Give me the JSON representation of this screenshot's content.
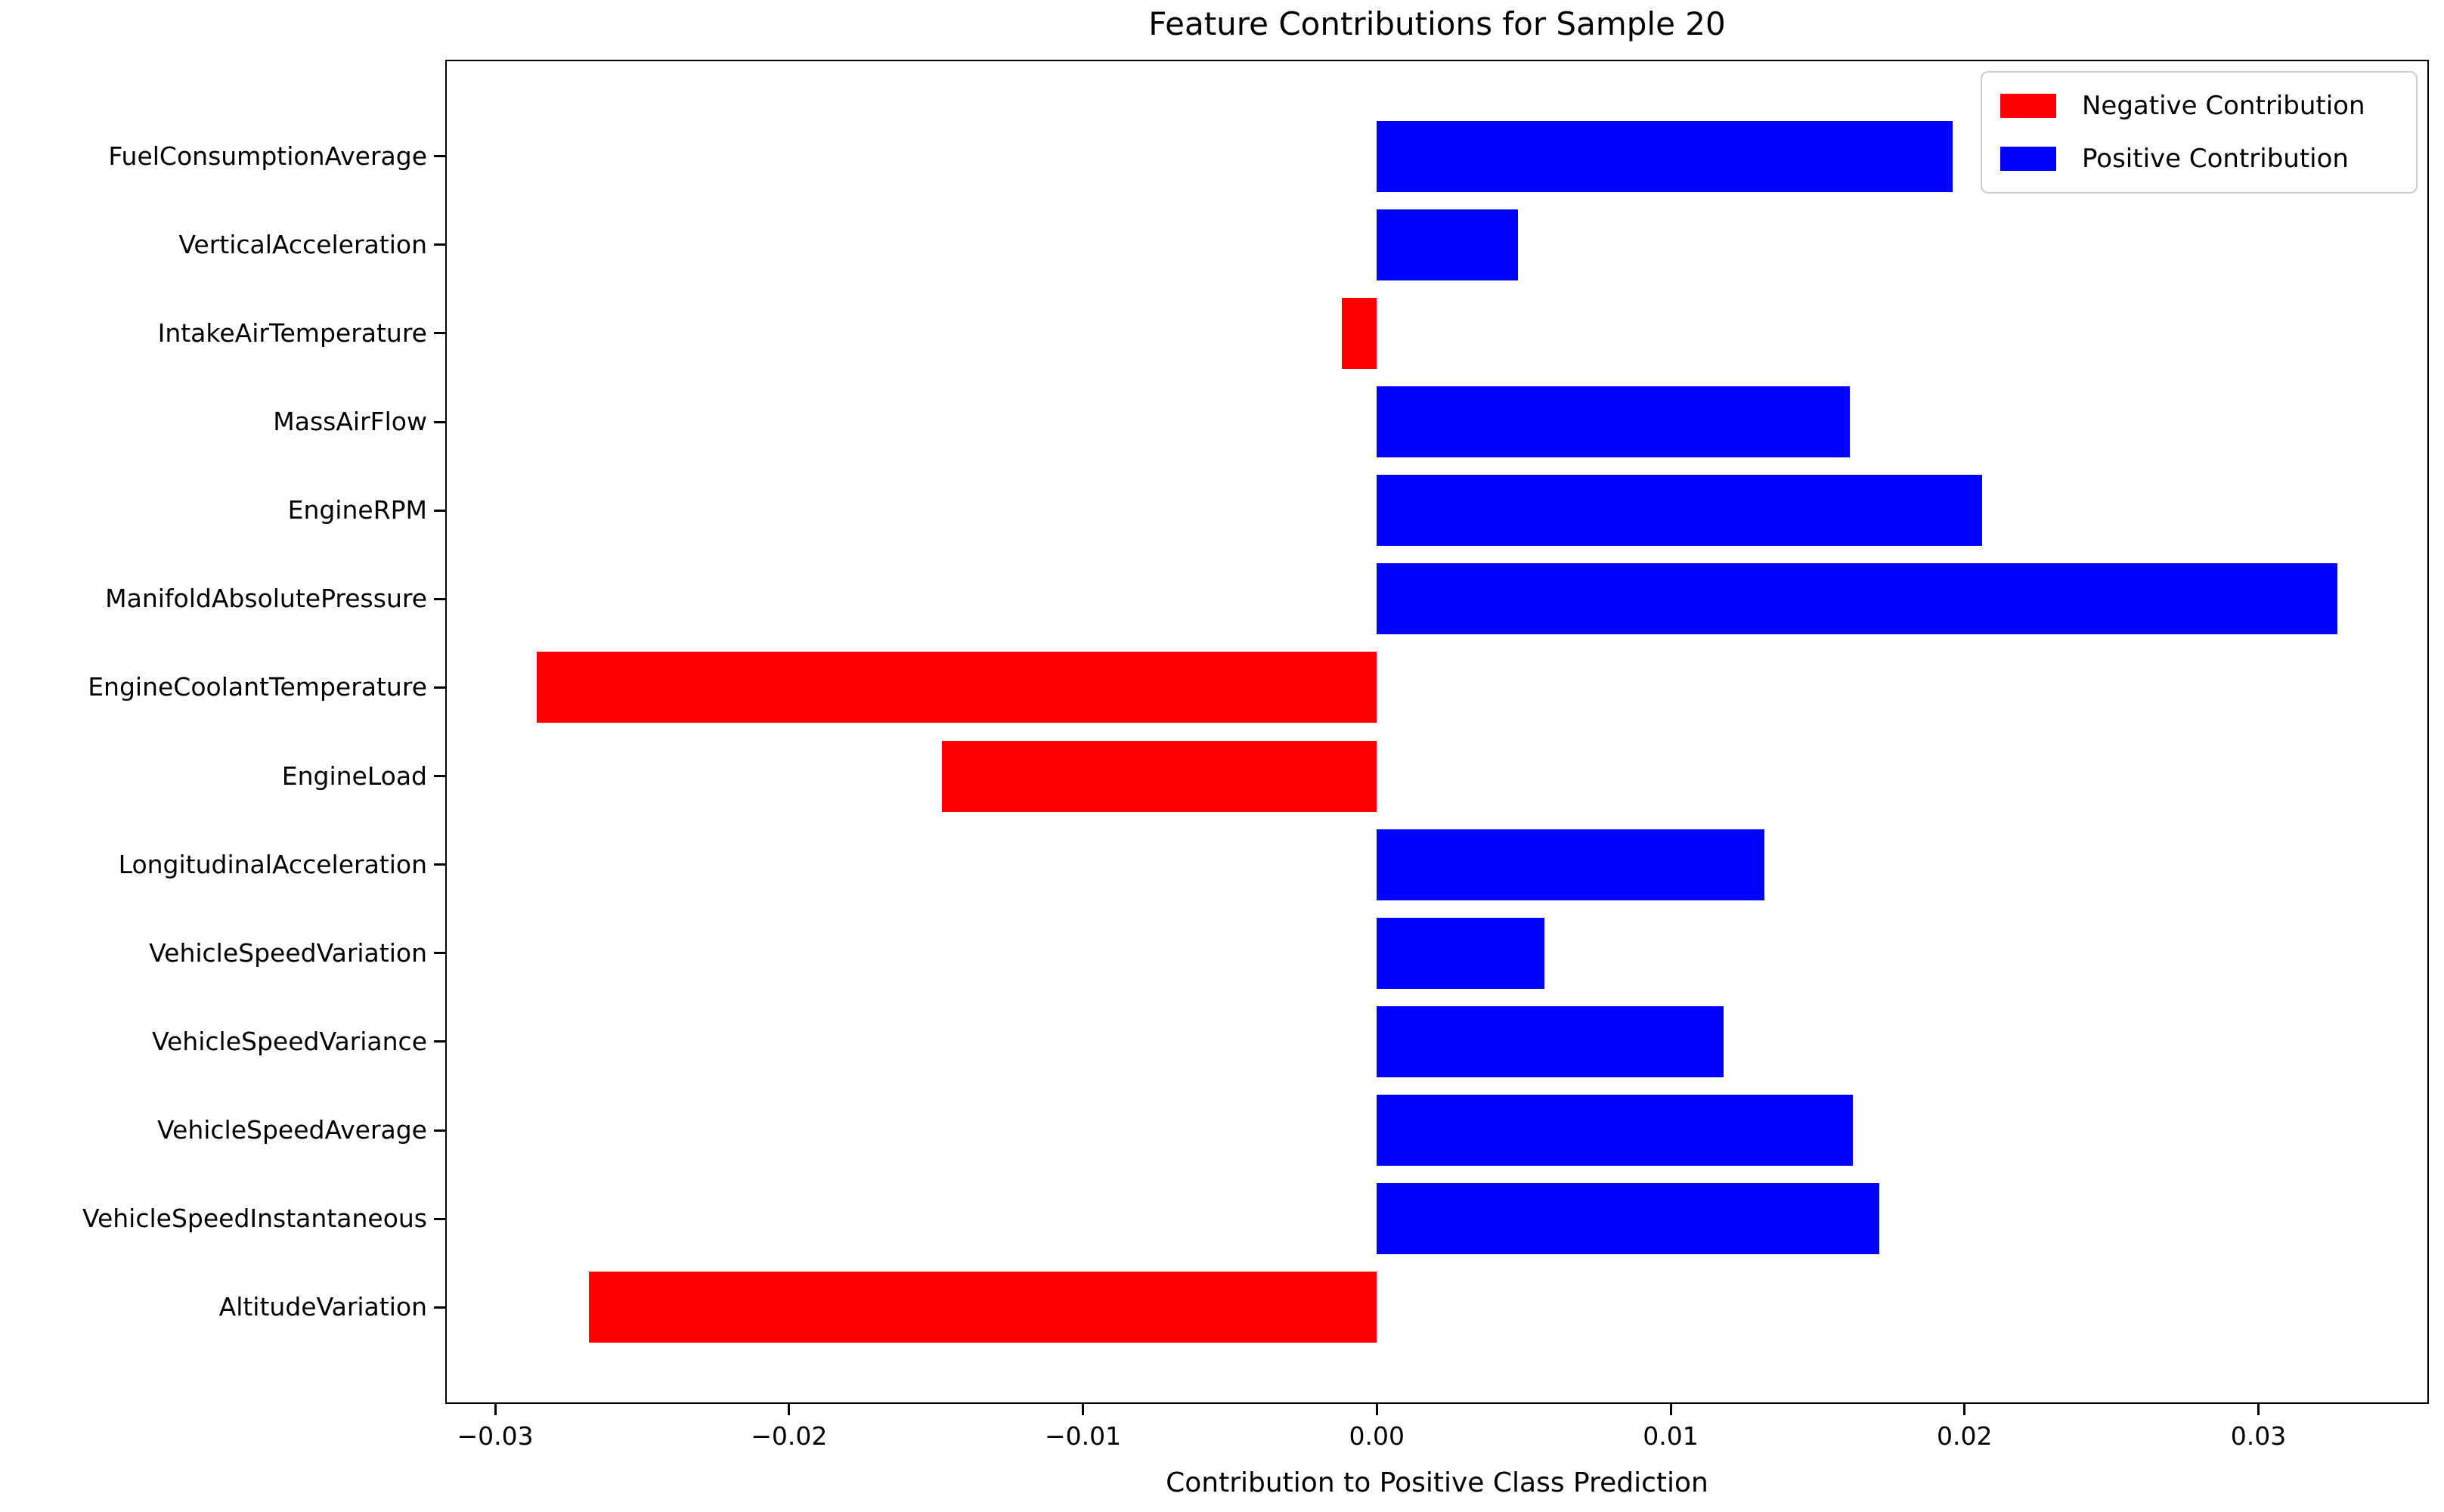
{
  "title": "Feature Contributions for Sample 20",
  "x_axis_label": "Contribution to Positive Class Prediction",
  "colors": {
    "negative": "#ff0000",
    "positive": "#0000ff",
    "spine": "#000000",
    "legend_border": "#cccccc"
  },
  "legend": {
    "position": "upper right",
    "entries": [
      {
        "name": "negative",
        "label": "Negative Contribution",
        "color": "#ff0000"
      },
      {
        "name": "positive",
        "label": "Positive Contribution",
        "color": "#0000ff"
      }
    ]
  },
  "chart_data": {
    "type": "bar",
    "orientation": "horizontal",
    "title": "Feature Contributions for Sample 20",
    "xlabel": "Contribution to Positive Class Prediction",
    "ylabel": "",
    "grid": false,
    "bar_height_fraction": 0.8,
    "categories": [
      "FuelConsumptionAverage",
      "VerticalAcceleration",
      "IntakeAirTemperature",
      "MassAirFlow",
      "EngineRPM",
      "ManifoldAbsolutePressure",
      "EngineCoolantTemperature",
      "EngineLoad",
      "LongitudinalAcceleration",
      "VehicleSpeedVariation",
      "VehicleSpeedVariance",
      "VehicleSpeedAverage",
      "VehicleSpeedInstantaneous",
      "AltitudeVariation"
    ],
    "values": [
      0.0196,
      0.0048,
      -0.0012,
      0.0161,
      0.0206,
      0.0327,
      -0.0286,
      -0.0148,
      0.0132,
      0.0057,
      0.0118,
      0.0162,
      0.0171,
      -0.0268
    ],
    "xlim": [
      -0.0317,
      0.0358
    ],
    "xticks": [
      -0.03,
      -0.02,
      -0.01,
      0,
      0.01,
      0.02,
      0.03
    ],
    "xtick_labels": [
      "−0.03",
      "−0.02",
      "−0.01",
      "0.00",
      "0.01",
      "0.02",
      "0.03"
    ],
    "legend_entries": [
      "Negative Contribution",
      "Positive Contribution"
    ]
  }
}
